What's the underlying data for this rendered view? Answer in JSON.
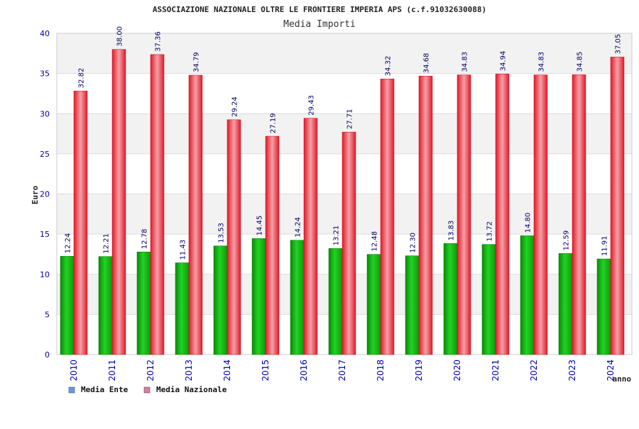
{
  "chart_data": {
    "type": "bar",
    "title": "ASSOCIAZIONE NAZIONALE OLTRE LE FRONTIERE IMPERIA APS (c.f.91032630088)",
    "subtitle": "Media Importi",
    "xlabel": "anno",
    "ylabel": "Euro",
    "ylim": [
      0,
      40
    ],
    "yticks": [
      0,
      5,
      10,
      15,
      20,
      25,
      30,
      35,
      40
    ],
    "grid": true,
    "legend_position": "bottom-left",
    "categories": [
      "2010",
      "2011",
      "2012",
      "2013",
      "2014",
      "2015",
      "2016",
      "2017",
      "2018",
      "2019",
      "2020",
      "2021",
      "2022",
      "2023",
      "2024"
    ],
    "series": [
      {
        "name": "Media Ente",
        "color": "#1eb41e",
        "legend_color": "#5f9ee8",
        "values": [
          12.24,
          12.21,
          12.78,
          11.43,
          13.53,
          14.45,
          14.24,
          13.21,
          12.48,
          12.3,
          13.83,
          13.72,
          14.8,
          12.59,
          11.91
        ],
        "labels": [
          "12.24",
          "12.21",
          "12.78",
          "11.43",
          "13.53",
          "14.45",
          "14.24",
          "13.21",
          "12.48",
          "12.30",
          "13.83",
          "13.72",
          "14.80",
          "12.59",
          "11.91"
        ]
      },
      {
        "name": "Media Nazionale",
        "color": "#e8202e",
        "legend_color": "#e07aa8",
        "values": [
          32.82,
          38.0,
          37.36,
          34.79,
          29.24,
          27.19,
          29.43,
          27.71,
          34.32,
          34.68,
          34.83,
          34.94,
          34.83,
          34.85,
          37.05
        ],
        "labels": [
          "32.82",
          "38.00",
          "37.36",
          "34.79",
          "29.24",
          "27.19",
          "29.43",
          "27.71",
          "34.32",
          "34.68",
          "34.83",
          "34.94",
          "34.83",
          "34.85",
          "37.05"
        ]
      }
    ]
  }
}
